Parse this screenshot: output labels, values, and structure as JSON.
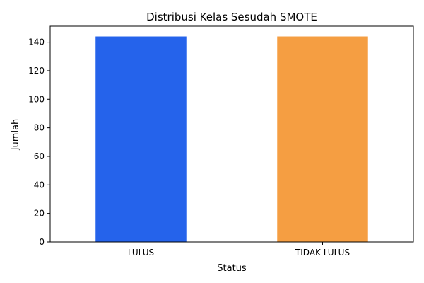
{
  "chart_data": {
    "type": "bar",
    "title": "Distribusi Kelas Sesudah SMOTE",
    "xlabel": "Status",
    "ylabel": "Jumlah",
    "categories": [
      "LULUS",
      "TIDAK LULUS"
    ],
    "values": [
      144,
      144
    ],
    "colors": [
      "#2563eb",
      "#f59e42"
    ],
    "ylim": [
      0,
      151.2
    ],
    "yticks": [
      0,
      20,
      40,
      60,
      80,
      100,
      120,
      140
    ],
    "grid": false,
    "legend": "none"
  }
}
